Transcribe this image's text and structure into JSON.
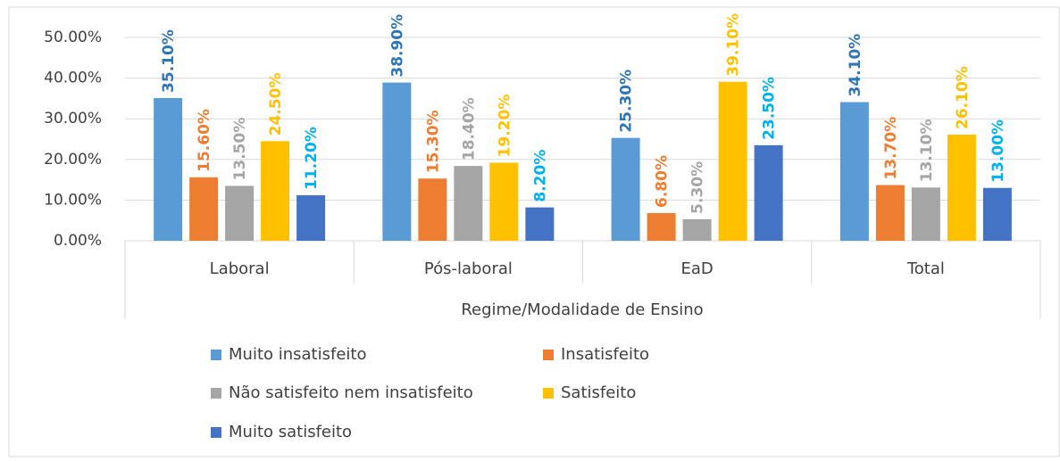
{
  "chart_data": {
    "type": "bar",
    "categories": [
      "Laboral",
      "Pós-laboral",
      "EaD",
      "Total"
    ],
    "x_label": "Regime/Modalidade de Ensino",
    "ylim": [
      0,
      50
    ],
    "yticks": [
      {
        "value": 0,
        "label": "0.00%"
      },
      {
        "value": 10,
        "label": "10.00%"
      },
      {
        "value": 20,
        "label": "20.00%"
      },
      {
        "value": 30,
        "label": "30.00%"
      },
      {
        "value": 40,
        "label": "40.00%"
      },
      {
        "value": 50,
        "label": "50.00%"
      }
    ],
    "grid": true,
    "legend": "bottom",
    "series": [
      {
        "name": "Muito insatisfeito",
        "color": "#5b9bd5",
        "label_color": "#2e75b6",
        "values": [
          35.1,
          38.9,
          25.3,
          34.1
        ],
        "value_labels": [
          "35.10%",
          "38.90%",
          "25.30%",
          "34.10%"
        ]
      },
      {
        "name": "Insatisfeito",
        "color": "#ed7d31",
        "label_color": "#ed7d31",
        "values": [
          15.6,
          15.3,
          6.8,
          13.7
        ],
        "value_labels": [
          "15.60%",
          "15.30%",
          "6.80%",
          "13.70%"
        ]
      },
      {
        "name": "Não satisfeito nem insatisfeito",
        "color": "#a5a5a5",
        "label_color": "#a5a5a5",
        "values": [
          13.5,
          18.4,
          5.3,
          13.1
        ],
        "value_labels": [
          "13.50%",
          "18.40%",
          "5.30%",
          "13.10%"
        ]
      },
      {
        "name": "Satisfeito",
        "color": "#ffc000",
        "label_color": "#ffc000",
        "values": [
          24.5,
          19.2,
          39.1,
          26.1
        ],
        "value_labels": [
          "24.50%",
          "19.20%",
          "39.10%",
          "26.10%"
        ]
      },
      {
        "name": "Muito satisfeito",
        "color": "#4472c4",
        "label_color": "#00b0f0",
        "values": [
          11.2,
          8.2,
          23.5,
          13.0
        ],
        "value_labels": [
          "11.20%",
          "8.20%",
          "23.50%",
          "13.00%"
        ]
      }
    ]
  }
}
